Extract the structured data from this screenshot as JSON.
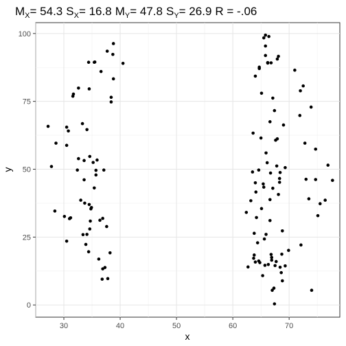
{
  "chart_data": {
    "type": "scatter",
    "title_parts": {
      "mx_label": "M",
      "mx_sub": "X",
      "mx_value": "= 54.3",
      "sx_label": "S",
      "sx_sub": "X",
      "sx_value": "= 16.8",
      "my_label": "M",
      "my_sub": "Y",
      "my_value": "= 47.8",
      "sy_label": "S",
      "sy_sub": "Y",
      "sy_value": "= 26.9",
      "r_value": "R = -.06"
    },
    "xlabel": "x",
    "ylabel": "y",
    "xlim": [
      25,
      79
    ],
    "ylim": [
      -4.5,
      104
    ],
    "x_ticks": [
      30,
      40,
      50,
      60,
      70
    ],
    "x_tick_labels": [
      "30",
      "40",
      "50",
      "60",
      "70"
    ],
    "y_ticks": [
      0,
      25,
      50,
      75,
      100
    ],
    "y_tick_labels": [
      "0",
      "25",
      "50",
      "75",
      "100"
    ],
    "grid": true,
    "points": [
      [
        27.2,
        65.8
      ],
      [
        27.8,
        51.0
      ],
      [
        28.4,
        34.6
      ],
      [
        28.6,
        59.6
      ],
      [
        30.1,
        32.6
      ],
      [
        30.5,
        23.5
      ],
      [
        30.5,
        58.8
      ],
      [
        30.5,
        65.5
      ],
      [
        30.8,
        64.1
      ],
      [
        31.0,
        31.8
      ],
      [
        31.2,
        32.1
      ],
      [
        31.6,
        76.9
      ],
      [
        31.7,
        77.7
      ],
      [
        32.4,
        49.7
      ],
      [
        32.6,
        53.9
      ],
      [
        32.6,
        79.9
      ],
      [
        33.0,
        38.6
      ],
      [
        33.3,
        66.8
      ],
      [
        33.4,
        25.9
      ],
      [
        33.6,
        46.1
      ],
      [
        33.6,
        53.2
      ],
      [
        33.7,
        37.5
      ],
      [
        33.9,
        22.3
      ],
      [
        34.1,
        64.6
      ],
      [
        34.1,
        26.0
      ],
      [
        34.4,
        19.6
      ],
      [
        34.4,
        89.4
      ],
      [
        34.5,
        79.6
      ],
      [
        34.5,
        37.0
      ],
      [
        34.6,
        28.0
      ],
      [
        34.6,
        54.7
      ],
      [
        34.7,
        30.9
      ],
      [
        34.8,
        35.4
      ],
      [
        34.9,
        35.9
      ],
      [
        35.2,
        52.5
      ],
      [
        35.4,
        43.1
      ],
      [
        35.4,
        89.4
      ],
      [
        35.5,
        89.5
      ],
      [
        35.7,
        47.9
      ],
      [
        35.7,
        49.6
      ],
      [
        35.9,
        53.4
      ],
      [
        36.2,
        16.9
      ],
      [
        36.4,
        31.2
      ],
      [
        36.6,
        86.0
      ],
      [
        36.8,
        9.5
      ],
      [
        36.9,
        31.9
      ],
      [
        36.9,
        13.3
      ],
      [
        37.1,
        49.7
      ],
      [
        37.3,
        13.8
      ],
      [
        37.6,
        28.9
      ],
      [
        37.7,
        93.5
      ],
      [
        37.8,
        9.7
      ],
      [
        38.2,
        19.2
      ],
      [
        38.4,
        74.8
      ],
      [
        38.4,
        76.5
      ],
      [
        38.7,
        92.3
      ],
      [
        38.8,
        96.3
      ],
      [
        38.8,
        83.3
      ],
      [
        40.5,
        89.0
      ],
      [
        62.4,
        34.1
      ],
      [
        62.7,
        14.0
      ],
      [
        63.2,
        38.4
      ],
      [
        63.5,
        49.0
      ],
      [
        63.6,
        63.3
      ],
      [
        63.7,
        17.2
      ],
      [
        63.8,
        18.4
      ],
      [
        63.8,
        26.4
      ],
      [
        64.0,
        15.8
      ],
      [
        64.0,
        45.0
      ],
      [
        64.0,
        84.3
      ],
      [
        64.1,
        41.6
      ],
      [
        64.2,
        32.2
      ],
      [
        64.4,
        22.9
      ],
      [
        64.6,
        16.2
      ],
      [
        64.6,
        49.7
      ],
      [
        64.7,
        87.6
      ],
      [
        64.7,
        87.1
      ],
      [
        64.8,
        15.6
      ],
      [
        65.0,
        61.5
      ],
      [
        65.1,
        78.0
      ],
      [
        65.1,
        35.5
      ],
      [
        65.3,
        10.8
      ],
      [
        65.4,
        44.6
      ],
      [
        65.5,
        98.4
      ],
      [
        65.5,
        43.4
      ],
      [
        65.6,
        24.3
      ],
      [
        65.7,
        14.6
      ],
      [
        65.8,
        99.4
      ],
      [
        65.8,
        95.4
      ],
      [
        65.8,
        91.9
      ],
      [
        65.9,
        26.0
      ],
      [
        65.9,
        56.0
      ],
      [
        66.1,
        52.4
      ],
      [
        66.2,
        89.1
      ],
      [
        66.2,
        89.3
      ],
      [
        66.3,
        14.9
      ],
      [
        66.4,
        98.9
      ],
      [
        66.6,
        38.8
      ],
      [
        66.6,
        31.1
      ],
      [
        66.6,
        67.5
      ],
      [
        66.7,
        48.6
      ],
      [
        66.8,
        89.2
      ],
      [
        66.8,
        18.6
      ],
      [
        66.9,
        16.5
      ],
      [
        66.9,
        17.5
      ],
      [
        67.0,
        5.4
      ],
      [
        67.1,
        76.2
      ],
      [
        67.1,
        43.0
      ],
      [
        67.3,
        6.2
      ],
      [
        67.4,
        71.6
      ],
      [
        67.4,
        0.4
      ],
      [
        67.5,
        14.5
      ],
      [
        67.6,
        60.7
      ],
      [
        67.7,
        16.0
      ],
      [
        67.8,
        51.2
      ],
      [
        67.9,
        61.2
      ],
      [
        67.9,
        90.6
      ],
      [
        68.1,
        91.6
      ],
      [
        68.1,
        40.7
      ],
      [
        68.3,
        46.6
      ],
      [
        68.3,
        45.2
      ],
      [
        68.4,
        48.8
      ],
      [
        68.4,
        13.9
      ],
      [
        68.6,
        11.9
      ],
      [
        68.7,
        18.7
      ],
      [
        68.8,
        8.9
      ],
      [
        68.8,
        27.3
      ],
      [
        69.0,
        66.3
      ],
      [
        69.3,
        50.6
      ],
      [
        69.3,
        14.4
      ],
      [
        69.9,
        20.1
      ],
      [
        71.0,
        86.5
      ],
      [
        71.9,
        69.8
      ],
      [
        72.0,
        78.9
      ],
      [
        72.1,
        22.1
      ],
      [
        72.5,
        80.7
      ],
      [
        72.8,
        59.6
      ],
      [
        73.0,
        46.3
      ],
      [
        73.5,
        39.1
      ],
      [
        73.9,
        72.9
      ],
      [
        74.0,
        5.4
      ],
      [
        74.7,
        57.4
      ],
      [
        74.7,
        46.2
      ],
      [
        75.1,
        32.9
      ],
      [
        75.5,
        37.3
      ],
      [
        76.4,
        38.6
      ],
      [
        76.9,
        51.5
      ],
      [
        77.7,
        45.9
      ]
    ]
  }
}
